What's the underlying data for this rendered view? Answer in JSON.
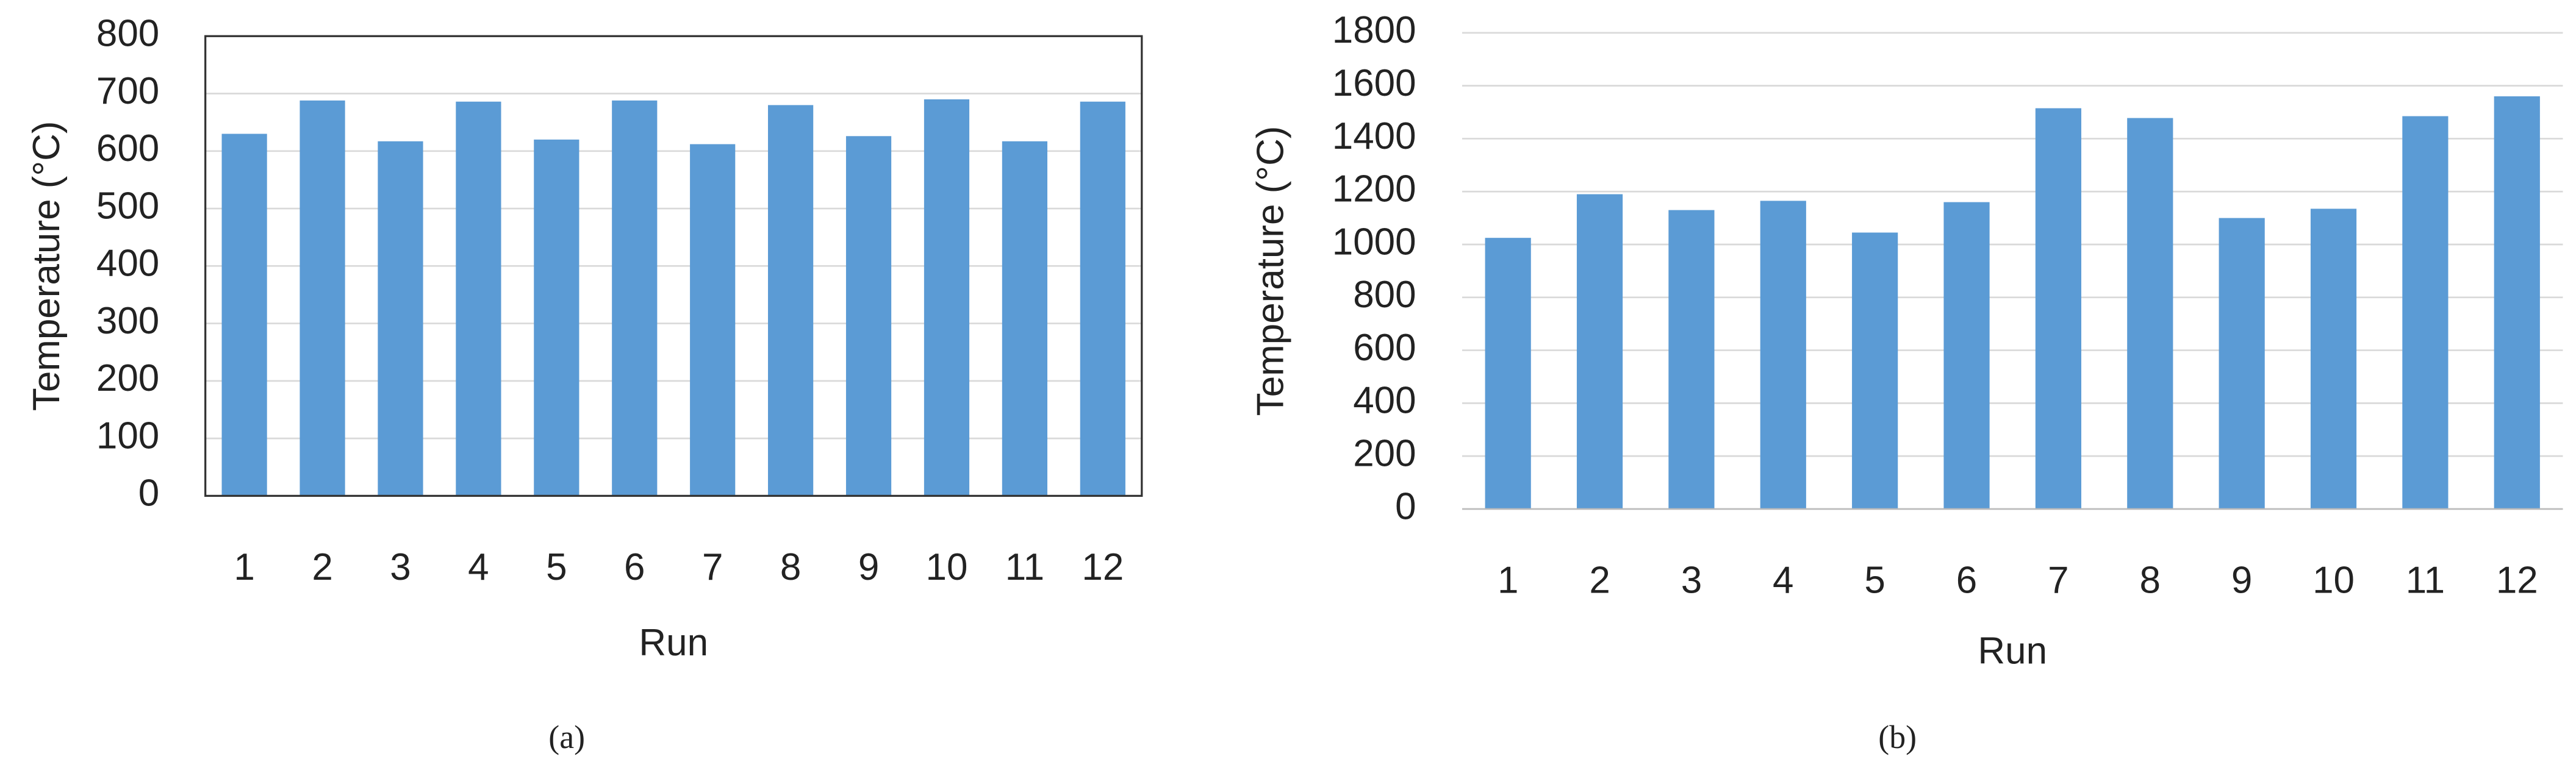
{
  "chart_data": [
    {
      "type": "bar",
      "caption": "(a)",
      "x_label": "Run",
      "y_label": "Temperature (°C)",
      "categories": [
        "1",
        "2",
        "3",
        "4",
        "5",
        "6",
        "7",
        "8",
        "9",
        "10",
        "11",
        "12"
      ],
      "values": [
        630,
        688,
        617,
        686,
        620,
        688,
        612,
        680,
        626,
        690,
        617,
        686
      ],
      "color": "#5b9bd5",
      "ylim": [
        0,
        800
      ],
      "yticks": [
        0,
        100,
        200,
        300,
        400,
        500,
        600,
        700,
        800
      ],
      "grid": true,
      "frame": true
    },
    {
      "type": "bar",
      "caption": "(b)",
      "x_label": "Run",
      "y_label": "Temperature (°C)",
      "categories": [
        "1",
        "2",
        "3",
        "4",
        "5",
        "6",
        "7",
        "8",
        "9",
        "10",
        "11",
        "12"
      ],
      "values": [
        1025,
        1190,
        1130,
        1165,
        1045,
        1160,
        1515,
        1478,
        1100,
        1135,
        1485,
        1560
      ],
      "color": "#5b9bd5",
      "ylim": [
        0,
        1800
      ],
      "yticks": [
        0,
        200,
        400,
        600,
        800,
        1000,
        1200,
        1400,
        1600,
        1800
      ],
      "grid": true,
      "frame": false
    }
  ]
}
